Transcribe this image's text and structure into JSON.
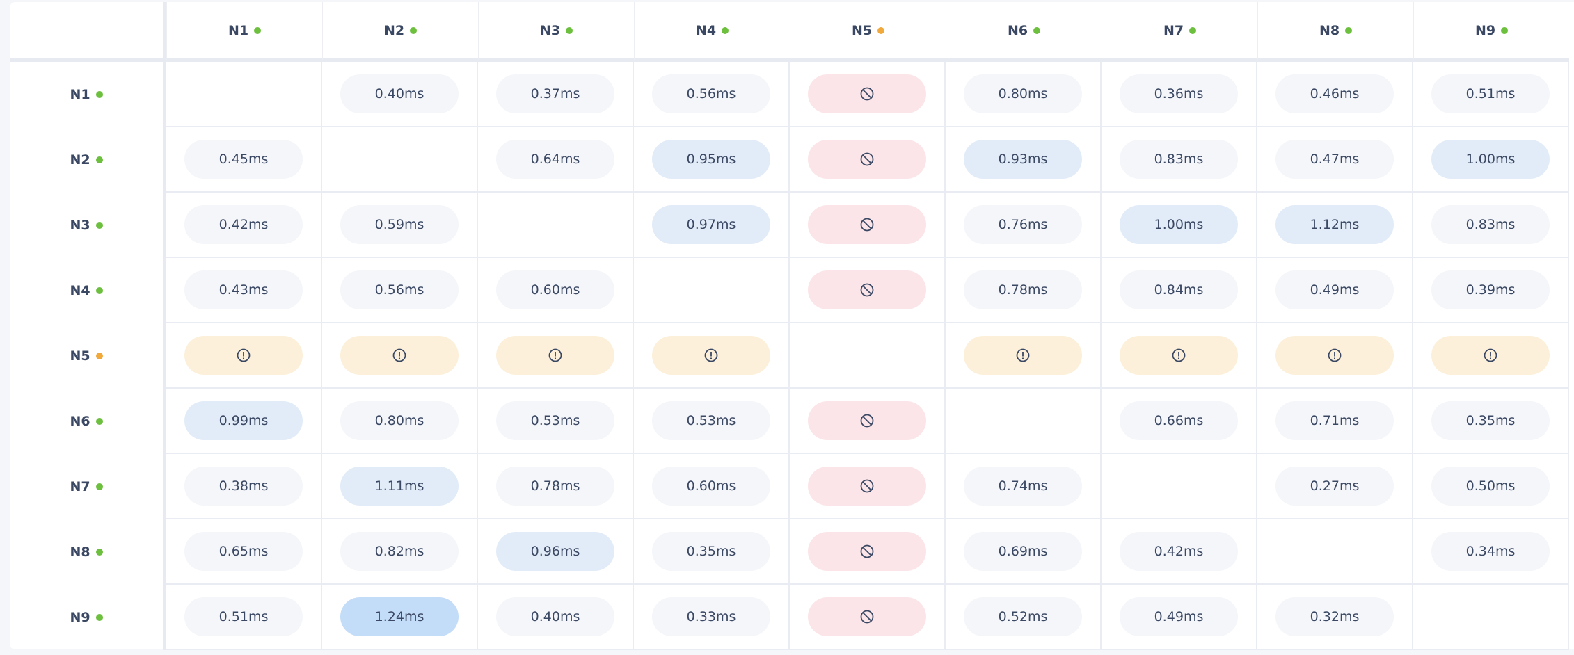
{
  "colors": {
    "online": "#6dbf3e",
    "degraded": "#f0a93a",
    "text": "#3b4863"
  },
  "nodes": [
    {
      "label": "N1",
      "status": "online"
    },
    {
      "label": "N2",
      "status": "online"
    },
    {
      "label": "N3",
      "status": "online"
    },
    {
      "label": "N4",
      "status": "online"
    },
    {
      "label": "N5",
      "status": "degraded"
    },
    {
      "label": "N6",
      "status": "online"
    },
    {
      "label": "N7",
      "status": "online"
    },
    {
      "label": "N8",
      "status": "online"
    },
    {
      "label": "N9",
      "status": "online"
    }
  ],
  "icons": {
    "blocked": "blocked-icon",
    "warn": "alert-circle-icon"
  },
  "matrix": [
    [
      null,
      "0.40ms",
      "0.37ms",
      "0.56ms",
      "blocked",
      "0.80ms",
      "0.36ms",
      "0.46ms",
      "0.51ms"
    ],
    [
      "0.45ms",
      null,
      "0.64ms",
      "0.95ms",
      "blocked",
      "0.93ms",
      "0.83ms",
      "0.47ms",
      "1.00ms"
    ],
    [
      "0.42ms",
      "0.59ms",
      null,
      "0.97ms",
      "blocked",
      "0.76ms",
      "1.00ms",
      "1.12ms",
      "0.83ms"
    ],
    [
      "0.43ms",
      "0.56ms",
      "0.60ms",
      null,
      "blocked",
      "0.78ms",
      "0.84ms",
      "0.49ms",
      "0.39ms"
    ],
    [
      "warn",
      "warn",
      "warn",
      "warn",
      null,
      "warn",
      "warn",
      "warn",
      "warn"
    ],
    [
      "0.99ms",
      "0.80ms",
      "0.53ms",
      "0.53ms",
      "blocked",
      null,
      "0.66ms",
      "0.71ms",
      "0.35ms"
    ],
    [
      "0.38ms",
      "1.11ms",
      "0.78ms",
      "0.60ms",
      "blocked",
      "0.74ms",
      null,
      "0.27ms",
      "0.50ms"
    ],
    [
      "0.65ms",
      "0.82ms",
      "0.96ms",
      "0.35ms",
      "blocked",
      "0.69ms",
      "0.42ms",
      null,
      "0.34ms"
    ],
    [
      "0.51ms",
      "1.24ms",
      "0.40ms",
      "0.33ms",
      "blocked",
      "0.52ms",
      "0.49ms",
      "0.32ms",
      null
    ]
  ]
}
